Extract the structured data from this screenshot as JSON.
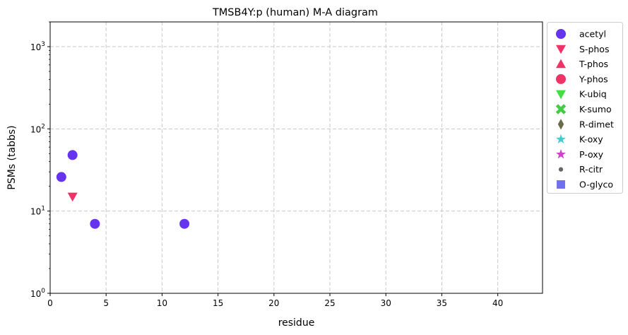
{
  "chart_data": {
    "type": "scatter",
    "title": "TMSB4Y:p (human) M-A diagram",
    "xlabel": "residue",
    "ylabel": "PSMs (tabbs)",
    "xlim": [
      0,
      44
    ],
    "ylim": [
      1,
      2000
    ],
    "yscale": "log",
    "grid": true,
    "legend_position": "outside-right",
    "x_ticks": [
      0,
      5,
      10,
      15,
      20,
      25,
      30,
      35,
      40
    ],
    "x_tick_labels": [
      "0",
      "5",
      "10",
      "15",
      "20",
      "25",
      "30",
      "35",
      "40"
    ],
    "y_ticks": [
      1,
      10,
      100,
      1000
    ],
    "y_tick_labels": [
      {
        "base": "10",
        "exp": "0"
      },
      {
        "base": "10",
        "exp": "1"
      },
      {
        "base": "10",
        "exp": "2"
      },
      {
        "base": "10",
        "exp": "3"
      }
    ],
    "series": [
      {
        "name": "acetyl",
        "marker": "circle",
        "color": "#6633ee",
        "points": [
          {
            "x": 1,
            "y": 26
          },
          {
            "x": 2,
            "y": 48
          },
          {
            "x": 4,
            "y": 7
          },
          {
            "x": 12,
            "y": 7
          }
        ]
      },
      {
        "name": "S-phos",
        "marker": "triangle-down",
        "color": "#ee3366",
        "points": [
          {
            "x": 2,
            "y": 15
          }
        ]
      },
      {
        "name": "T-phos",
        "marker": "triangle-up",
        "color": "#ee3366",
        "points": []
      },
      {
        "name": "Y-phos",
        "marker": "circle",
        "color": "#ee3366",
        "points": []
      },
      {
        "name": "K-ubiq",
        "marker": "triangle-down",
        "color": "#44dd44",
        "points": []
      },
      {
        "name": "K-sumo",
        "marker": "x-filled",
        "color": "#44cc44",
        "points": []
      },
      {
        "name": "R-dimet",
        "marker": "diamond-thin",
        "color": "#6b6b4a",
        "points": []
      },
      {
        "name": "K-oxy",
        "marker": "star",
        "color": "#44cccc",
        "points": []
      },
      {
        "name": "P-oxy",
        "marker": "star",
        "color": "#cc44cc",
        "points": []
      },
      {
        "name": "R-citr",
        "marker": "dot",
        "color": "#666666",
        "points": []
      },
      {
        "name": "O-glyco",
        "marker": "square",
        "color": "#7070ee",
        "points": []
      }
    ]
  }
}
